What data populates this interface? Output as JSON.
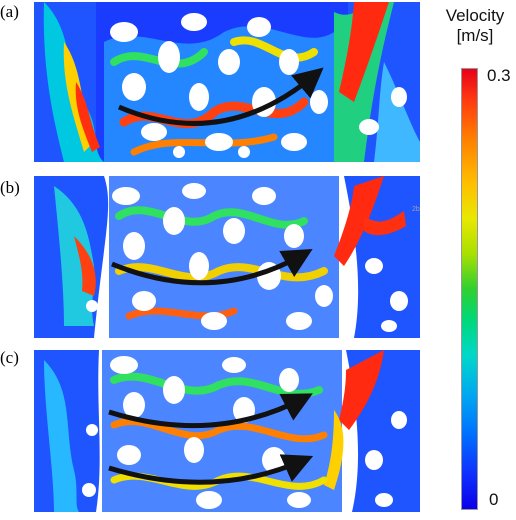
{
  "panels": [
    {
      "label": "(a)"
    },
    {
      "label": "(b)"
    },
    {
      "label": "(c)"
    }
  ],
  "colorbar": {
    "title_line1": "Velocity",
    "title_line2": "[m/s]",
    "max_label": "0.3",
    "min_label": "0",
    "colors": [
      "#e8001a",
      "#ff8000",
      "#e8e800",
      "#30d030",
      "#00d8c8",
      "#0070ff",
      "#0a00e8"
    ]
  },
  "arrow_color": "#111111",
  "stamp_text": "2b"
}
